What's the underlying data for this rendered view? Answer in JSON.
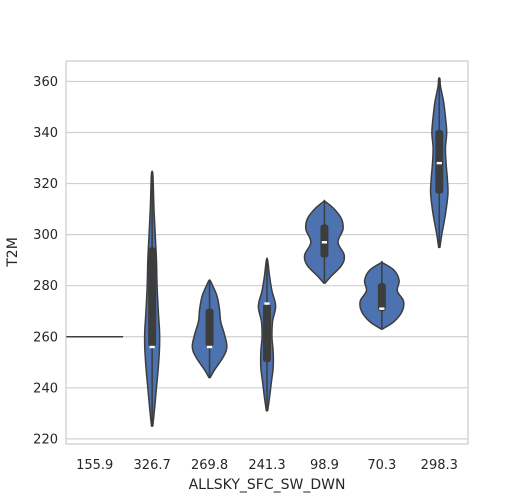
{
  "chart_data": {
    "type": "violin",
    "title": "",
    "xlabel": "ALLSKY_SFC_SW_DWN",
    "ylabel": "T2M",
    "ylim": [
      218,
      368
    ],
    "yticks": [
      220,
      240,
      260,
      280,
      300,
      320,
      340,
      360
    ],
    "grid": "horizontal",
    "colors": {
      "violin_fill": "#4c72b0",
      "violin_edge": "#3d3d3d",
      "box": "#3d3d3d",
      "median": "#ffffff",
      "grid": "#d0d0d0",
      "frame": "#cccccc"
    },
    "categories": [
      "155.9",
      "326.7",
      "269.8",
      "241.3",
      "98.9",
      "70.3",
      "298.3"
    ],
    "violins": [
      {
        "category": "155.9",
        "min": 260,
        "max": 260,
        "q1": 260,
        "median": 260,
        "q3": 260,
        "kde": [
          [
            260,
            0.95
          ]
        ]
      },
      {
        "category": "326.7",
        "min": 225,
        "max": 324,
        "q1": 256,
        "median": 256,
        "q3": 295,
        "kde": [
          [
            225,
            0.01
          ],
          [
            232,
            0.04
          ],
          [
            240,
            0.07
          ],
          [
            248,
            0.1
          ],
          [
            256,
            0.12
          ],
          [
            262,
            0.12
          ],
          [
            270,
            0.1
          ],
          [
            280,
            0.08
          ],
          [
            290,
            0.07
          ],
          [
            300,
            0.05
          ],
          [
            310,
            0.03
          ],
          [
            318,
            0.02
          ],
          [
            324,
            0.01
          ]
        ]
      },
      {
        "category": "269.8",
        "min": 244,
        "max": 282,
        "q1": 256,
        "median": 256,
        "q3": 271,
        "kde": [
          [
            244,
            0.01
          ],
          [
            247,
            0.08
          ],
          [
            252,
            0.22
          ],
          [
            256,
            0.28
          ],
          [
            261,
            0.24
          ],
          [
            266,
            0.18
          ],
          [
            271,
            0.16
          ],
          [
            276,
            0.12
          ],
          [
            280,
            0.05
          ],
          [
            282,
            0.01
          ]
        ]
      },
      {
        "category": "241.3",
        "min": 231,
        "max": 290,
        "q1": 250,
        "median": 273,
        "q3": 273,
        "kde": [
          [
            231,
            0.01
          ],
          [
            236,
            0.04
          ],
          [
            242,
            0.07
          ],
          [
            248,
            0.1
          ],
          [
            254,
            0.1
          ],
          [
            260,
            0.08
          ],
          [
            266,
            0.09
          ],
          [
            272,
            0.14
          ],
          [
            278,
            0.08
          ],
          [
            284,
            0.04
          ],
          [
            290,
            0.01
          ]
        ]
      },
      {
        "category": "98.9",
        "min": 281,
        "max": 313,
        "q1": 291,
        "median": 297,
        "q3": 304,
        "kde": [
          [
            281,
            0.01
          ],
          [
            284,
            0.12
          ],
          [
            288,
            0.28
          ],
          [
            292,
            0.32
          ],
          [
            297,
            0.22
          ],
          [
            302,
            0.3
          ],
          [
            306,
            0.28
          ],
          [
            310,
            0.16
          ],
          [
            313,
            0.01
          ]
        ]
      },
      {
        "category": "70.3",
        "min": 263,
        "max": 289,
        "q1": 270,
        "median": 271,
        "q3": 281,
        "kde": [
          [
            263,
            0.01
          ],
          [
            266,
            0.2
          ],
          [
            270,
            0.33
          ],
          [
            274,
            0.35
          ],
          [
            278,
            0.25
          ],
          [
            282,
            0.28
          ],
          [
            286,
            0.2
          ],
          [
            289,
            0.01
          ]
        ]
      },
      {
        "category": "298.3",
        "min": 295,
        "max": 361,
        "q1": 316,
        "median": 328,
        "q3": 341,
        "kde": [
          [
            295,
            0.01
          ],
          [
            300,
            0.04
          ],
          [
            308,
            0.1
          ],
          [
            316,
            0.14
          ],
          [
            322,
            0.13
          ],
          [
            328,
            0.11
          ],
          [
            334,
            0.1
          ],
          [
            340,
            0.12
          ],
          [
            346,
            0.1
          ],
          [
            352,
            0.07
          ],
          [
            358,
            0.02
          ],
          [
            361,
            0.01
          ]
        ]
      }
    ]
  }
}
